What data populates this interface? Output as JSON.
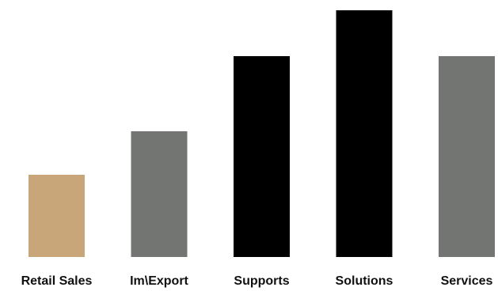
{
  "chart_data": {
    "type": "bar",
    "title": "",
    "xlabel": "",
    "ylabel": "",
    "categories": [
      "Retail Sales",
      "Im\\Export",
      "Supports",
      "Solutions",
      "Services"
    ],
    "values": [
      104,
      159,
      254,
      312,
      254
    ],
    "colors": [
      "#c9a57a",
      "#737573",
      "#000000",
      "#000000",
      "#737573"
    ],
    "ylim": [
      0,
      312
    ],
    "grid": false,
    "legend": "none"
  }
}
